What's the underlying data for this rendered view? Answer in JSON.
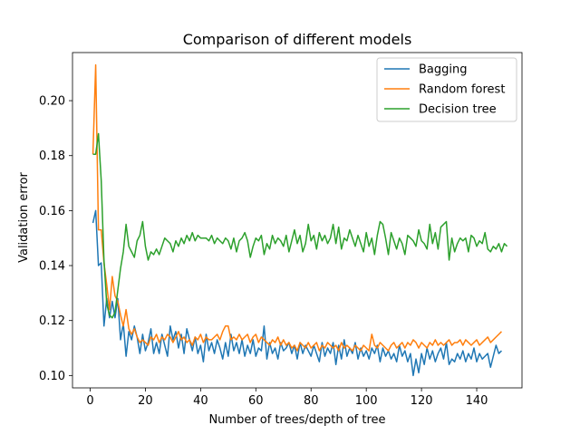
{
  "chart_data": {
    "type": "line",
    "title": "Comparison of different models",
    "xlabel": "Number of trees/depth of tree",
    "ylabel": "Validation error",
    "xlim": [
      -6.4,
      156.4
    ],
    "ylim": [
      0.0955,
      0.2175
    ],
    "xticks": [
      0,
      20,
      40,
      60,
      80,
      100,
      120,
      140
    ],
    "yticks": [
      0.1,
      0.12,
      0.14,
      0.16,
      0.18,
      0.2
    ],
    "ytick_labels": [
      "0.10",
      "0.12",
      "0.14",
      "0.16",
      "0.18",
      "0.20"
    ],
    "grid": false,
    "legend": "upper right",
    "x_start": 1,
    "series": [
      {
        "name": "Bagging",
        "color": "#1f77b4",
        "values": [
          0.1555,
          0.16,
          0.14,
          0.141,
          0.118,
          0.128,
          0.121,
          0.127,
          0.121,
          0.128,
          0.113,
          0.119,
          0.107,
          0.116,
          0.113,
          0.118,
          0.114,
          0.108,
          0.115,
          0.109,
          0.112,
          0.117,
          0.108,
          0.112,
          0.108,
          0.115,
          0.111,
          0.107,
          0.118,
          0.113,
          0.116,
          0.11,
          0.115,
          0.108,
          0.117,
          0.113,
          0.109,
          0.114,
          0.108,
          0.111,
          0.105,
          0.115,
          0.109,
          0.112,
          0.108,
          0.113,
          0.11,
          0.106,
          0.112,
          0.107,
          0.115,
          0.109,
          0.112,
          0.108,
          0.113,
          0.107,
          0.111,
          0.108,
          0.113,
          0.107,
          0.11,
          0.109,
          0.118,
          0.106,
          0.112,
          0.108,
          0.11,
          0.106,
          0.112,
          0.109,
          0.11,
          0.112,
          0.108,
          0.111,
          0.106,
          0.112,
          0.108,
          0.111,
          0.109,
          0.107,
          0.111,
          0.108,
          0.105,
          0.112,
          0.107,
          0.11,
          0.108,
          0.112,
          0.104,
          0.111,
          0.106,
          0.113,
          0.107,
          0.11,
          0.108,
          0.112,
          0.106,
          0.11,
          0.107,
          0.109,
          0.106,
          0.11,
          0.108,
          0.111,
          0.105,
          0.11,
          0.107,
          0.109,
          0.106,
          0.108,
          0.105,
          0.111,
          0.107,
          0.109,
          0.105,
          0.108,
          0.1,
          0.106,
          0.101,
          0.108,
          0.104,
          0.11,
          0.106,
          0.109,
          0.105,
          0.108,
          0.11,
          0.106,
          0.112,
          0.104,
          0.106,
          0.105,
          0.108,
          0.106,
          0.109,
          0.105,
          0.108,
          0.106,
          0.11,
          0.105,
          0.108,
          0.106,
          0.107,
          0.108,
          0.103,
          0.107,
          0.111,
          0.108,
          0.109
        ]
      },
      {
        "name": "Random forest",
        "color": "#ff7f0e",
        "values": [
          0.1805,
          0.213,
          0.153,
          0.153,
          0.141,
          0.133,
          0.124,
          0.136,
          0.129,
          0.127,
          0.122,
          0.118,
          0.124,
          0.117,
          0.115,
          0.117,
          0.114,
          0.112,
          0.113,
          0.112,
          0.111,
          0.114,
          0.113,
          0.115,
          0.112,
          0.114,
          0.113,
          0.115,
          0.114,
          0.112,
          0.114,
          0.116,
          0.113,
          0.114,
          0.112,
          0.113,
          0.111,
          0.114,
          0.113,
          0.115,
          0.112,
          0.114,
          0.113,
          0.113,
          0.114,
          0.115,
          0.113,
          0.116,
          0.118,
          0.118,
          0.113,
          0.114,
          0.113,
          0.115,
          0.113,
          0.114,
          0.115,
          0.112,
          0.114,
          0.115,
          0.112,
          0.114,
          0.113,
          0.112,
          0.111,
          0.113,
          0.112,
          0.114,
          0.111,
          0.113,
          0.111,
          0.112,
          0.11,
          0.111,
          0.109,
          0.112,
          0.111,
          0.11,
          0.112,
          0.11,
          0.111,
          0.112,
          0.109,
          0.111,
          0.11,
          0.112,
          0.111,
          0.11,
          0.111,
          0.109,
          0.112,
          0.11,
          0.111,
          0.11,
          0.109,
          0.111,
          0.11,
          0.109,
          0.111,
          0.11,
          0.109,
          0.115,
          0.111,
          0.11,
          0.112,
          0.111,
          0.11,
          0.109,
          0.111,
          0.112,
          0.11,
          0.111,
          0.112,
          0.11,
          0.112,
          0.111,
          0.113,
          0.112,
          0.11,
          0.112,
          0.111,
          0.11,
          0.112,
          0.111,
          0.113,
          0.111,
          0.112,
          0.111,
          0.112,
          0.113,
          0.111,
          0.112,
          0.112,
          0.113,
          0.111,
          0.113,
          0.112,
          0.111,
          0.112,
          0.113,
          0.111,
          0.112,
          0.113,
          0.114,
          0.112,
          0.113,
          0.114,
          0.115,
          0.116
        ]
      },
      {
        "name": "Decision tree",
        "color": "#2ca02c",
        "values": [
          0.1805,
          0.1805,
          0.188,
          0.171,
          0.142,
          0.126,
          0.122,
          0.121,
          0.123,
          0.131,
          0.139,
          0.145,
          0.155,
          0.147,
          0.145,
          0.143,
          0.149,
          0.151,
          0.156,
          0.147,
          0.142,
          0.145,
          0.144,
          0.146,
          0.144,
          0.147,
          0.15,
          0.149,
          0.148,
          0.145,
          0.149,
          0.147,
          0.15,
          0.148,
          0.151,
          0.149,
          0.152,
          0.149,
          0.151,
          0.15,
          0.15,
          0.15,
          0.149,
          0.151,
          0.148,
          0.15,
          0.149,
          0.148,
          0.15,
          0.149,
          0.146,
          0.15,
          0.145,
          0.149,
          0.15,
          0.152,
          0.149,
          0.143,
          0.147,
          0.15,
          0.149,
          0.151,
          0.144,
          0.148,
          0.146,
          0.151,
          0.148,
          0.15,
          0.149,
          0.147,
          0.151,
          0.145,
          0.149,
          0.153,
          0.148,
          0.151,
          0.145,
          0.148,
          0.155,
          0.149,
          0.151,
          0.146,
          0.152,
          0.149,
          0.151,
          0.148,
          0.15,
          0.155,
          0.148,
          0.154,
          0.146,
          0.15,
          0.149,
          0.153,
          0.15,
          0.147,
          0.151,
          0.148,
          0.145,
          0.152,
          0.147,
          0.15,
          0.144,
          0.151,
          0.156,
          0.155,
          0.15,
          0.144,
          0.152,
          0.149,
          0.146,
          0.15,
          0.148,
          0.144,
          0.151,
          0.15,
          0.149,
          0.147,
          0.153,
          0.149,
          0.148,
          0.146,
          0.155,
          0.148,
          0.152,
          0.146,
          0.154,
          0.155,
          0.156,
          0.142,
          0.15,
          0.145,
          0.148,
          0.15,
          0.149,
          0.15,
          0.145,
          0.151,
          0.15,
          0.147,
          0.149,
          0.148,
          0.152,
          0.146,
          0.145,
          0.147,
          0.146,
          0.148,
          0.145,
          0.148,
          0.147
        ]
      }
    ]
  }
}
